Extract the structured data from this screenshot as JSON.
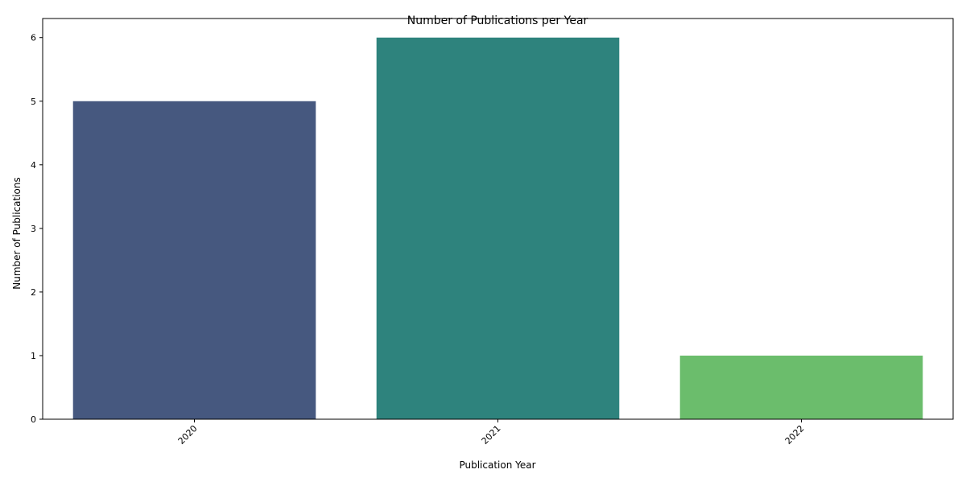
{
  "chart_data": {
    "type": "bar",
    "title": "Number of Publications per Year",
    "xlabel": "Publication Year",
    "ylabel": "Number of Publications",
    "categories": [
      "2020",
      "2021",
      "2022"
    ],
    "values": [
      5,
      6,
      1
    ],
    "colors": [
      "#46587f",
      "#2e837d",
      "#6bbd6c"
    ],
    "ylim": [
      0,
      6.3
    ],
    "yticks": [
      0,
      1,
      2,
      3,
      4,
      5,
      6
    ],
    "xtick_rotation": "45 degrees",
    "grid": false,
    "legend": "none"
  }
}
